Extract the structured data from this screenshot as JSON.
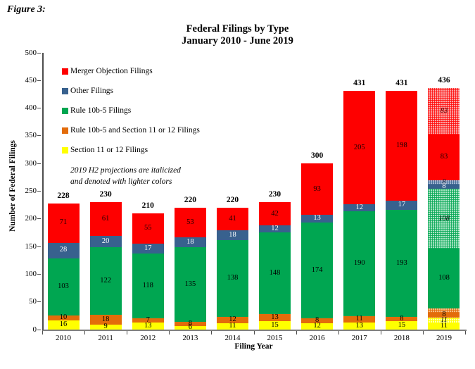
{
  "figure_label": "Figure 3:",
  "title": "Federal Filings by Type",
  "subtitle": "January 2010 - June 2019",
  "axes": {
    "y_title": "Number of Federal Filings",
    "x_title": "Filing Year"
  },
  "note": {
    "line1": "2019 H2 projections are italicized",
    "line2": "and denoted with lighter colors"
  },
  "legend": [
    {
      "label": "Merger Objection Filings",
      "color": "#FE0000"
    },
    {
      "label": "Other Filings",
      "color": "#38618E"
    },
    {
      "label": "Rule 10b-5 Filings",
      "color": "#00A651"
    },
    {
      "label": "Rule 10b-5 and Section 11 or 12 Filings",
      "color": "#E36C0A"
    },
    {
      "label": "Section 11 or 12 Filings",
      "color": "#FFFF00"
    }
  ],
  "colors": {
    "merger_objection": "#FE0000",
    "other": "#38618E",
    "rule_10b5": "#00A651",
    "rule_10b5_and_sec_11_12": "#E36C0A",
    "section_11_12": "#FFFF00"
  },
  "chart_data": {
    "type": "bar",
    "stacked": true,
    "title": "Federal Filings by Type",
    "subtitle": "January 2010 - June 2019",
    "xlabel": "Filing Year",
    "ylabel": "Number of Federal Filings",
    "ylim": [
      0,
      500
    ],
    "yticks": [
      0,
      50,
      100,
      150,
      200,
      250,
      300,
      350,
      400,
      450,
      500
    ],
    "grid": false,
    "legend_position": "upper-left-inside",
    "categories": [
      "2010",
      "2011",
      "2012",
      "2013",
      "2014",
      "2015",
      "2016",
      "2017",
      "2018",
      "2019"
    ],
    "totals": [
      "228",
      "230",
      "210",
      "220",
      "220",
      "230",
      "300",
      "431",
      "431",
      "436"
    ],
    "series": [
      {
        "key": "yellow",
        "name": "Section 11 or 12 Filings",
        "values": [
          16,
          9,
          13,
          6,
          11,
          15,
          12,
          13,
          15,
          11
        ],
        "labels": [
          "16",
          "9",
          "13",
          "6",
          "11",
          "15",
          "12",
          "13",
          "15",
          "11"
        ]
      },
      {
        "key": "yellow-p",
        "name": "Section 11 or 12 Filings (2019 H2 projection)",
        "values": [
          0,
          0,
          0,
          0,
          0,
          0,
          0,
          0,
          0,
          11
        ],
        "labels": [
          "",
          "",
          "",
          "",
          "",
          "",
          "",
          "",
          "",
          "11"
        ]
      },
      {
        "key": "orange",
        "name": "Rule 10b-5 and Section 11 or 12 Filings",
        "values": [
          10,
          18,
          7,
          8,
          12,
          13,
          8,
          11,
          8,
          8
        ],
        "labels": [
          "10",
          "18",
          "7",
          "8",
          "12",
          "13",
          "8",
          "11",
          "8",
          "8"
        ]
      },
      {
        "key": "orange-p",
        "name": "Rule 10b-5 and Section 11 or 12 Filings (2019 H2 projection)",
        "values": [
          0,
          0,
          0,
          0,
          0,
          0,
          0,
          0,
          0,
          8
        ],
        "labels": [
          "",
          "",
          "",
          "",
          "",
          "",
          "",
          "",
          "",
          ""
        ]
      },
      {
        "key": "green",
        "name": "Rule 10b-5 Filings",
        "values": [
          103,
          122,
          118,
          135,
          138,
          148,
          174,
          190,
          193,
          108
        ],
        "labels": [
          "103",
          "122",
          "118",
          "135",
          "138",
          "148",
          "174",
          "190",
          "193",
          "108"
        ]
      },
      {
        "key": "green-p",
        "name": "Rule 10b-5 Filings (2019 H2 projection)",
        "values": [
          0,
          0,
          0,
          0,
          0,
          0,
          0,
          0,
          0,
          108
        ],
        "labels": [
          "",
          "",
          "",
          "",
          "",
          "",
          "",
          "",
          "",
          "108"
        ]
      },
      {
        "key": "blue",
        "name": "Other Filings",
        "values": [
          28,
          20,
          17,
          18,
          18,
          12,
          13,
          12,
          17,
          8
        ],
        "labels": [
          "28",
          "20",
          "17",
          "18",
          "18",
          "12",
          "13",
          "12",
          "17",
          "8"
        ]
      },
      {
        "key": "blue-p",
        "name": "Other Filings (2019 H2 projection)",
        "values": [
          0,
          0,
          0,
          0,
          0,
          0,
          0,
          0,
          0,
          8
        ],
        "labels": [
          "",
          "",
          "",
          "",
          "",
          "",
          "",
          "",
          "",
          "8"
        ]
      },
      {
        "key": "red",
        "name": "Merger Objection Filings",
        "values": [
          71,
          61,
          55,
          53,
          41,
          42,
          93,
          205,
          198,
          83
        ],
        "labels": [
          "71",
          "61",
          "55",
          "53",
          "41",
          "42",
          "93",
          "205",
          "198",
          "83"
        ]
      },
      {
        "key": "red-p",
        "name": "Merger Objection Filings (2019 H2 projection)",
        "values": [
          0,
          0,
          0,
          0,
          0,
          0,
          0,
          0,
          0,
          83
        ],
        "labels": [
          "",
          "",
          "",
          "",
          "",
          "",
          "",
          "",
          "",
          "83"
        ]
      }
    ]
  }
}
